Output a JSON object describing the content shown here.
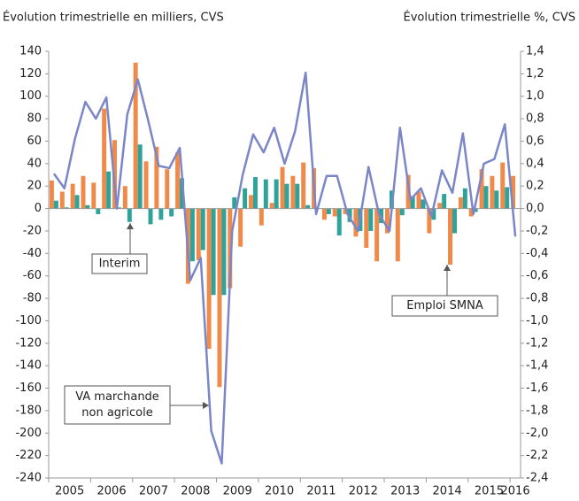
{
  "chart_data": {
    "type": "bar_line",
    "y_label": "Évolution trimestrielle en milliers, CVS",
    "y2_label": "Évolution trimestrielle %, CVS",
    "categories": [
      "2005",
      null,
      null,
      null,
      "2006",
      null,
      null,
      null,
      "2007",
      null,
      null,
      null,
      "2008",
      null,
      null,
      null,
      "2009",
      null,
      null,
      null,
      "2010",
      null,
      null,
      null,
      "2011",
      null,
      null,
      null,
      "2012",
      null,
      null,
      null,
      "2013",
      null,
      null,
      null,
      "2014",
      null,
      null,
      null,
      "2015",
      null,
      null,
      null,
      "2016"
    ],
    "series": [
      {
        "name": "Emploi SMNA",
        "type": "bar",
        "color": "#f08a4b",
        "values": [
          25,
          15,
          22,
          29,
          23,
          89,
          61,
          20,
          130,
          42,
          55,
          35,
          50,
          -67,
          -46,
          -125,
          -159,
          -71,
          -34,
          12,
          -15,
          5,
          37,
          29,
          41,
          36,
          -10,
          -7,
          -5,
          -25,
          -35,
          -47,
          -22,
          -47,
          30,
          15,
          -22,
          5,
          -50,
          10,
          -7,
          35,
          29,
          41,
          29
        ]
      },
      {
        "name": "Interim",
        "type": "bar",
        "color": "#2fa39a",
        "values": [
          7,
          1,
          12,
          3,
          -5,
          33,
          1,
          -12,
          57,
          -14,
          -10,
          -7,
          27,
          -47,
          -37,
          -77,
          -77,
          10,
          18,
          28,
          26,
          26,
          22,
          22,
          3,
          0,
          -5,
          -24,
          -12,
          -20,
          -20,
          -13,
          16,
          -6,
          11,
          8,
          -10,
          13,
          -22,
          18,
          -3,
          20,
          16,
          19,
          0
        ]
      },
      {
        "name": "VA marchande non agricole",
        "type": "line",
        "axis": "y2",
        "color": "#7b86c8",
        "values": [
          0.31,
          0.18,
          0.62,
          0.95,
          0.8,
          0.99,
          0.0,
          0.84,
          1.15,
          0.78,
          0.38,
          0.36,
          0.54,
          -0.64,
          -0.44,
          -1.98,
          -2.27,
          -0.2,
          0.3,
          0.66,
          0.5,
          0.72,
          0.4,
          0.69,
          1.21,
          -0.05,
          0.29,
          0.29,
          -0.05,
          -0.2,
          0.37,
          -0.05,
          -0.2,
          0.72,
          0.08,
          0.18,
          -0.07,
          0.34,
          0.14,
          0.67,
          -0.05,
          0.4,
          0.44,
          0.75,
          -0.25
        ]
      }
    ],
    "ylim": [
      -240,
      140
    ],
    "yticks": [
      -240,
      -220,
      -200,
      -180,
      -160,
      -140,
      -120,
      -100,
      -80,
      -60,
      -40,
      -20,
      0,
      20,
      40,
      60,
      80,
      100,
      120,
      140
    ],
    "y2lim": [
      -2.4,
      1.4
    ],
    "y2ticks": [
      {
        "value": -2.4,
        "label": "-2,4"
      },
      {
        "value": -2.2,
        "label": "-2,2"
      },
      {
        "value": -2.0,
        "label": "-2,0"
      },
      {
        "value": -1.8,
        "label": "-1,8"
      },
      {
        "value": -1.6,
        "label": "-1,6"
      },
      {
        "value": -1.4,
        "label": "-1,4"
      },
      {
        "value": -1.2,
        "label": "-1,2"
      },
      {
        "value": -1.0,
        "label": "-1,0"
      },
      {
        "value": -0.8,
        "label": "-0,8"
      },
      {
        "value": -0.6,
        "label": "-0,6"
      },
      {
        "value": -0.4,
        "label": "-0,4"
      },
      {
        "value": -0.2,
        "label": "-0,2"
      },
      {
        "value": 0,
        "label": "0,0"
      },
      {
        "value": 0.2,
        "label": "0,2"
      },
      {
        "value": 0.4,
        "label": "0,4"
      },
      {
        "value": 0.6,
        "label": "0,6"
      },
      {
        "value": 0.8,
        "label": "0,8"
      },
      {
        "value": 1.0,
        "label": "1,0"
      },
      {
        "value": 1.2,
        "label": "1,2"
      },
      {
        "value": 1.4,
        "label": "1,4"
      }
    ],
    "annotations": [
      {
        "lines": [
          "Interim"
        ]
      },
      {
        "lines": [
          "Emploi SMNA"
        ]
      },
      {
        "lines": [
          "VA marchande",
          "non agricole"
        ]
      }
    ]
  }
}
